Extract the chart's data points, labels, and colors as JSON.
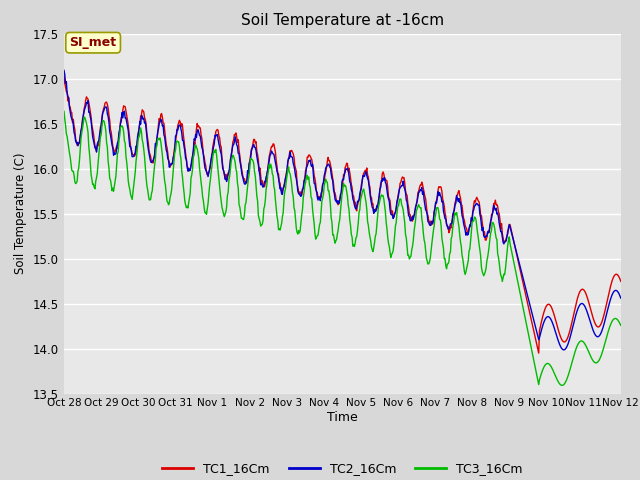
{
  "title": "Soil Temperature at -16cm",
  "xlabel": "Time",
  "ylabel": "Soil Temperature (C)",
  "ylim": [
    13.5,
    17.5
  ],
  "yticks": [
    13.5,
    14.0,
    14.5,
    15.0,
    15.5,
    16.0,
    16.5,
    17.0,
    17.5
  ],
  "bg_color": "#e8e8e8",
  "fig_bg_color": "#d8d8d8",
  "line_colors": [
    "#dd0000",
    "#0000cc",
    "#00bb00"
  ],
  "line_labels": [
    "TC1_16Cm",
    "TC2_16Cm",
    "TC3_16Cm"
  ],
  "annotation_text": "SI_met",
  "annotation_bg": "#ffffcc",
  "annotation_border": "#999900",
  "annotation_text_color": "#880000",
  "xtick_labels": [
    "Oct 28",
    "Oct 29",
    "Oct 30",
    "Oct 31",
    "Nov 1",
    "Nov 2",
    "Nov 3",
    "Nov 4",
    "Nov 5",
    "Nov 6",
    "Nov 7",
    "Nov 8",
    "Nov 9",
    "Nov 10",
    "Nov 11",
    "Nov 12"
  ],
  "figsize": [
    6.4,
    4.8
  ],
  "dpi": 100
}
